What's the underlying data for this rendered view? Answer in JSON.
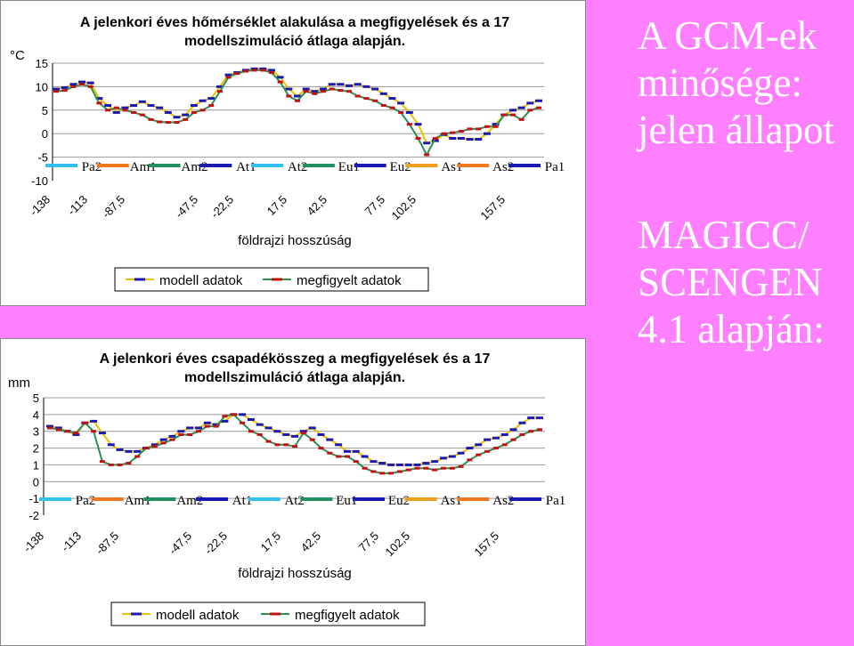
{
  "slide": {
    "title_lines": [
      "A GCM-ek",
      "minősége:",
      "jelen állapot"
    ],
    "subtitle_lines": [
      "MAGICC/",
      "SCENGEN",
      "4.1 alapján:"
    ],
    "background_color": "#ff80ff"
  },
  "chart_data": [
    {
      "type": "line",
      "title": "A jelenkori éves hőmérséklet alakulása a megfigyelések és a 17 modellszimuláció átlaga alapján.",
      "ylabel": "°C",
      "xlabel": "földrajzi hosszúság",
      "ylim": [
        -10,
        15
      ],
      "yticks": [
        "15",
        "10",
        "5",
        "0",
        "-5",
        "-10"
      ],
      "x_tick_labels": [
        "-138",
        "-113",
        "-87,5",
        "-47,5",
        "-22,5",
        "17,5",
        "42,5",
        "77,5",
        "102,5",
        "157,5"
      ],
      "region_labels": [
        "Pa2",
        "Am1",
        "Am2",
        "At1",
        "At2",
        "Eu1",
        "Eu2",
        "As1",
        "As2",
        "Pa1"
      ],
      "legend_position": "bottom",
      "grid": "horizontal",
      "series": [
        {
          "name": "modell adatok",
          "color": "#1a1ab0",
          "values": [
            9.5,
            9.8,
            10.5,
            11,
            10.8,
            7.5,
            6,
            4.5,
            5.5,
            6,
            6.8,
            6,
            5.5,
            4.5,
            3.5,
            4,
            6,
            7,
            7.5,
            10,
            12.5,
            13,
            13.5,
            13.8,
            13.8,
            13.5,
            12,
            9.5,
            8,
            9.5,
            9,
            9.5,
            10.5,
            10.5,
            10.2,
            10.5,
            10,
            9.5,
            8.5,
            7.5,
            6.5,
            4.5,
            2,
            -2,
            -1.5,
            -0.2,
            -1,
            -1,
            -1.2,
            -1.2,
            0,
            2,
            4,
            5,
            5.5,
            6.5,
            7
          ]
        },
        {
          "name": "megfigyelt adatok",
          "color": "#c41010",
          "values": [
            9,
            9.2,
            10,
            10.5,
            10,
            6.5,
            5,
            5.5,
            5,
            4.5,
            4,
            3,
            2.5,
            2.4,
            2.4,
            3,
            4.5,
            5,
            6,
            9,
            12,
            12.8,
            13.3,
            13.5,
            13.5,
            13,
            11,
            8,
            7,
            9,
            8.5,
            9,
            9.5,
            9.2,
            9,
            8,
            7.5,
            7,
            6,
            5.5,
            4.5,
            2,
            -1,
            -4.5,
            -1,
            0,
            0.2,
            0.5,
            1,
            1,
            1.5,
            1.5,
            4,
            4,
            3,
            5,
            5.5
          ]
        }
      ]
    },
    {
      "type": "line",
      "title": "A jelenkori éves csapadékösszeg a megfigyelések és a 17 modellszimuláció átlaga alapján.",
      "ylabel": "mm",
      "xlabel": "földrajzi hosszúság",
      "ylim": [
        -2,
        5
      ],
      "yticks": [
        "5",
        "4",
        "3",
        "2",
        "1",
        "0",
        "-1",
        "-2"
      ],
      "x_tick_labels": [
        "-138",
        "-113",
        "-87,5",
        "-47,5",
        "-22,5",
        "17,5",
        "42,5",
        "77,5",
        "102,5",
        "157,5"
      ],
      "region_labels": [
        "Pa2",
        "Am1",
        "Am2",
        "At1",
        "At2",
        "Eu1",
        "Eu2",
        "As1",
        "As2",
        "Pa1"
      ],
      "legend_position": "bottom",
      "grid": "horizontal",
      "series": [
        {
          "name": "modell adatok",
          "color": "#1a1ab0",
          "values": [
            3.3,
            3.2,
            3,
            2.8,
            3.5,
            3.6,
            2.9,
            2.2,
            1.9,
            1.8,
            1.8,
            2,
            2.2,
            2.5,
            2.7,
            3,
            3.2,
            3.2,
            3.5,
            3.4,
            3.6,
            4,
            4,
            3.7,
            3.4,
            3.2,
            3,
            2.8,
            2.7,
            3,
            3.2,
            2.8,
            2.5,
            2.2,
            1.8,
            1.8,
            1.5,
            1.2,
            1.1,
            1,
            1,
            1,
            1,
            1.1,
            1.2,
            1.4,
            1.5,
            1.7,
            2,
            2.2,
            2.5,
            2.6,
            2.8,
            3.1,
            3.5,
            3.8,
            3.8
          ]
        },
        {
          "name": "megfigyelt adatok",
          "color": "#c41010",
          "values": [
            3.2,
            3.1,
            3,
            2.9,
            3.5,
            3,
            1.2,
            1,
            1,
            1.1,
            1.5,
            2,
            2.1,
            2.3,
            2.5,
            2.8,
            2.8,
            3,
            3.3,
            3.3,
            3.9,
            4,
            3.5,
            3,
            2.8,
            2.4,
            2.2,
            2.2,
            2.1,
            2.9,
            2.5,
            2,
            1.7,
            1.5,
            1.5,
            1.2,
            0.8,
            0.6,
            0.5,
            0.5,
            0.6,
            0.7,
            0.8,
            0.8,
            0.7,
            0.8,
            0.8,
            0.9,
            1.3,
            1.6,
            1.8,
            2,
            2.2,
            2.5,
            2.8,
            3,
            3.1
          ]
        }
      ]
    }
  ],
  "region_band_colors": [
    "#33c0ee",
    "#f07820",
    "#209060",
    "#1a1ab0",
    "#33c0ee",
    "#209060",
    "#1a1ab0",
    "#f0a020",
    "#f07820",
    "#1a1ab0"
  ]
}
